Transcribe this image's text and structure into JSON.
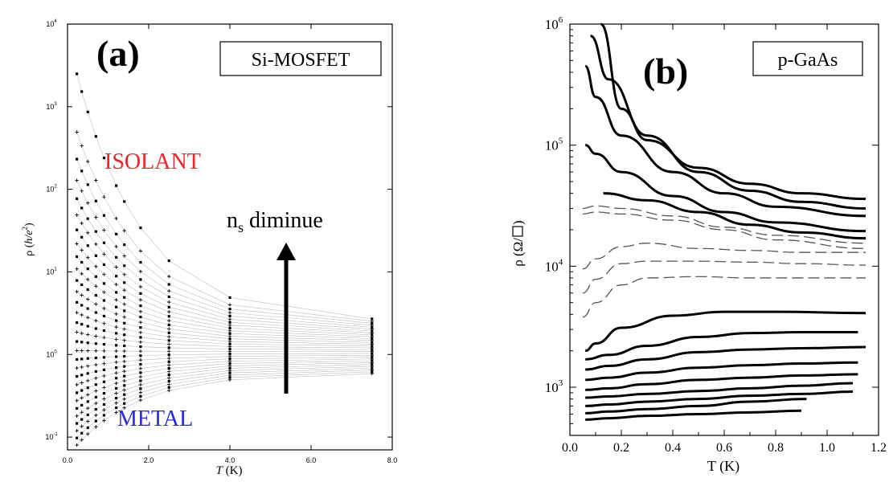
{
  "chart_data": [
    {
      "type": "line",
      "panel_label": "(a)",
      "legend_box": "Si-MOSFET",
      "xlabel_italic": "T",
      "xlabel_rest": " (K)",
      "ylabel_prefix": "ρ (",
      "ylabel_italic": "h/e",
      "ylabel_sup": "2",
      "ylabel_suffix": ")",
      "xlim": [
        0,
        8
      ],
      "ylim": [
        0.07,
        10000
      ],
      "y_scale": "log",
      "grid": false,
      "x_ticks": [
        "0.0",
        "2.0",
        "4.0",
        "6.0",
        "8.0"
      ],
      "y_ticks": [
        {
          "base": "10",
          "exp": "-1"
        },
        {
          "base": "10",
          "exp": "0"
        },
        {
          "base": "10",
          "exp": "1"
        },
        {
          "base": "10",
          "exp": "2"
        },
        {
          "base": "10",
          "exp": "3"
        },
        {
          "base": "10",
          "exp": "4"
        }
      ],
      "annotations": {
        "insulator": "ISOLANT",
        "insulator_color": "#e8262b",
        "metal": "METAL",
        "metal_color": "#2b2bd6",
        "arrow_text_base": "n",
        "arrow_text_sub": "s",
        "arrow_text_rest": " diminue"
      },
      "x": [
        0.23,
        0.35,
        0.5,
        0.7,
        0.9,
        1.2,
        1.4,
        1.8,
        2.5,
        4.0,
        7.5
      ],
      "series_values_first_last": [
        [
          2500,
          2.5
        ],
        [
          0.08,
          0.6
        ]
      ],
      "series_count": 30
    },
    {
      "type": "line",
      "panel_label": "(b)",
      "legend_box": "p-GaAs",
      "xlabel": "T (K)",
      "ylabel_text": "ρ (Ω/",
      "ylabel_suffix": ")",
      "xlim": [
        0.0,
        1.2
      ],
      "ylim": [
        400,
        1000000
      ],
      "y_scale": "log",
      "grid": false,
      "x_ticks": [
        "0.0",
        "0.2",
        "0.4",
        "0.6",
        "0.8",
        "1.0",
        "1.2"
      ],
      "y_ticks": [
        {
          "base": "10",
          "exp": "3"
        },
        {
          "base": "10",
          "exp": "4"
        },
        {
          "base": "10",
          "exp": "5"
        },
        {
          "base": "10",
          "exp": "6"
        }
      ],
      "series": [
        {
          "style": "solid",
          "x": [
            0.12,
            0.2,
            0.3,
            0.5,
            0.7,
            0.9,
            1.15
          ],
          "y": [
            1000000,
            200000,
            110000,
            65000,
            48000,
            40000,
            36000
          ]
        },
        {
          "style": "solid",
          "x": [
            0.08,
            0.15,
            0.3,
            0.5,
            0.7,
            0.9,
            1.15
          ],
          "y": [
            800000,
            350000,
            120000,
            60000,
            42000,
            34000,
            30000
          ]
        },
        {
          "style": "solid",
          "x": [
            0.06,
            0.1,
            0.2,
            0.4,
            0.6,
            0.8,
            1.15
          ],
          "y": [
            450000,
            250000,
            120000,
            60000,
            40000,
            31000,
            26000
          ]
        },
        {
          "style": "solid",
          "x": [
            0.06,
            0.1,
            0.2,
            0.4,
            0.6,
            0.8,
            1.15
          ],
          "y": [
            100000,
            85000,
            60000,
            38000,
            28000,
            23000,
            19500
          ]
        },
        {
          "style": "solid",
          "x": [
            0.13,
            0.3,
            0.5,
            0.7,
            0.9,
            1.15
          ],
          "y": [
            40000,
            35000,
            28000,
            22000,
            19000,
            17000
          ]
        },
        {
          "style": "dashed",
          "x": [
            0.05,
            0.1,
            0.2,
            0.4,
            0.6,
            0.8,
            1.15
          ],
          "y": [
            30000,
            31500,
            30000,
            26000,
            21000,
            18000,
            15500
          ]
        },
        {
          "style": "dashed",
          "x": [
            0.05,
            0.1,
            0.2,
            0.4,
            0.6,
            0.8,
            1.15
          ],
          "y": [
            27000,
            28000,
            27000,
            24000,
            20000,
            16500,
            14000
          ]
        },
        {
          "style": "dashed",
          "x": [
            0.05,
            0.1,
            0.2,
            0.3,
            0.5,
            0.7,
            0.9,
            1.15
          ],
          "y": [
            9500,
            11500,
            14500,
            15500,
            14000,
            13500,
            13000,
            13000
          ]
        },
        {
          "style": "dashed",
          "x": [
            0.05,
            0.1,
            0.2,
            0.3,
            0.5,
            0.7,
            0.9,
            1.15
          ],
          "y": [
            6000,
            7800,
            10500,
            11000,
            11000,
            10800,
            10500,
            10200
          ]
        },
        {
          "style": "dashed",
          "x": [
            0.05,
            0.1,
            0.2,
            0.3,
            0.5,
            0.7,
            0.9,
            1.15
          ],
          "y": [
            3800,
            5000,
            7000,
            8000,
            8200,
            8000,
            8000,
            8000
          ]
        },
        {
          "style": "solid",
          "x": [
            0.06,
            0.1,
            0.2,
            0.4,
            0.6,
            0.8,
            1.15
          ],
          "y": [
            2000,
            2300,
            3100,
            3900,
            4200,
            4200,
            4100
          ]
        },
        {
          "style": "solid",
          "x": [
            0.06,
            0.15,
            0.3,
            0.5,
            0.7,
            0.9,
            1.12
          ],
          "y": [
            1700,
            1850,
            2200,
            2600,
            2800,
            2850,
            2850
          ]
        },
        {
          "style": "solid",
          "x": [
            0.06,
            0.15,
            0.3,
            0.5,
            0.7,
            0.9,
            1.15
          ],
          "y": [
            1400,
            1500,
            1700,
            1950,
            2050,
            2100,
            2150
          ]
        },
        {
          "style": "solid",
          "x": [
            0.06,
            0.15,
            0.3,
            0.5,
            0.7,
            0.9,
            1.12
          ],
          "y": [
            1150,
            1200,
            1320,
            1450,
            1520,
            1570,
            1600
          ]
        },
        {
          "style": "solid",
          "x": [
            0.06,
            0.15,
            0.3,
            0.5,
            0.7,
            0.9,
            1.12
          ],
          "y": [
            950,
            980,
            1060,
            1150,
            1200,
            1250,
            1280
          ]
        },
        {
          "style": "solid",
          "x": [
            0.06,
            0.15,
            0.3,
            0.5,
            0.7,
            0.9,
            1.1
          ],
          "y": [
            820,
            840,
            880,
            930,
            980,
            1030,
            1080
          ]
        },
        {
          "style": "solid",
          "x": [
            0.06,
            0.15,
            0.3,
            0.5,
            0.7,
            0.9,
            1.1
          ],
          "y": [
            700,
            720,
            760,
            800,
            850,
            880,
            920
          ]
        },
        {
          "style": "solid",
          "x": [
            0.06,
            0.15,
            0.3,
            0.5,
            0.7,
            0.92
          ],
          "y": [
            610,
            630,
            660,
            700,
            760,
            800
          ]
        },
        {
          "style": "solid",
          "x": [
            0.06,
            0.15,
            0.3,
            0.5,
            0.7,
            0.9
          ],
          "y": [
            540,
            555,
            580,
            600,
            620,
            640
          ]
        }
      ]
    }
  ]
}
